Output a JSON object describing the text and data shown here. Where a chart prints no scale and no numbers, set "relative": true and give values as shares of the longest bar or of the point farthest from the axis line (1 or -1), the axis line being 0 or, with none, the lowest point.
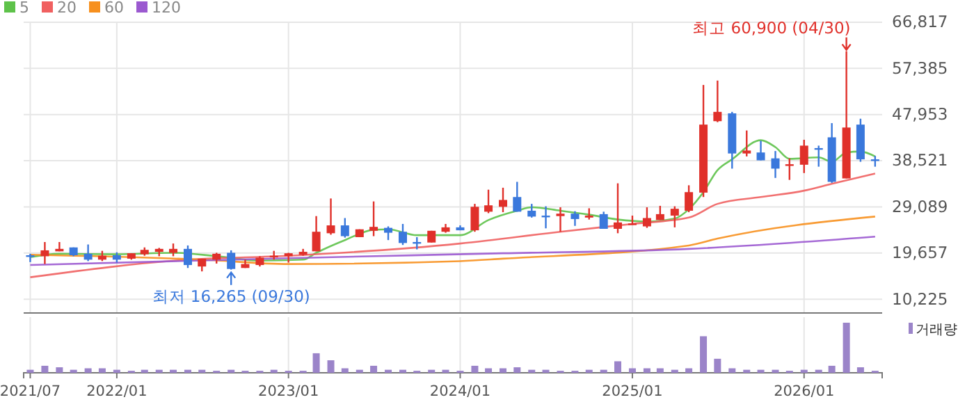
{
  "chart_data": [
    {
      "type": "candlestick",
      "legend": "top left",
      "grid": true,
      "tick_labels": "y",
      "x": [
        "2021-07",
        "2021-08",
        "2021-09",
        "2021-10",
        "2021-11",
        "2021-12",
        "2022-01",
        "2022-02",
        "2022-03",
        "2022-04",
        "2022-05",
        "2022-06",
        "2022-07",
        "2022-08",
        "2022-09",
        "2022-10",
        "2022-11",
        "2022-12",
        "2023-01",
        "2023-02",
        "2023-03",
        "2023-04",
        "2023-05",
        "2023-06",
        "2023-07",
        "2023-08",
        "2023-09",
        "2023-10",
        "2023-11",
        "2023-12",
        "2024-01",
        "2024-02",
        "2024-03",
        "2024-04",
        "2024-05",
        "2024-06",
        "2024-07",
        "2024-08",
        "2024-09",
        "2024-10",
        "2024-11",
        "2024-12",
        "2025-01",
        "2025-02",
        "2025-03",
        "2025-04",
        "2025-05",
        "2025-06",
        "2025-07",
        "2025-08",
        "2025-09",
        "2025-10",
        "2025-11",
        "2025-12",
        "2026-01",
        "2026-02",
        "2026-03",
        "2026-04",
        "2026-05",
        "2026-06"
      ],
      "ohlc": [
        [
          19200,
          19500,
          17800,
          19100
        ],
        [
          19000,
          21900,
          17400,
          20200
        ],
        [
          20000,
          21900,
          20000,
          20500
        ],
        [
          20800,
          20800,
          19000,
          19200
        ],
        [
          19500,
          21400,
          18000,
          18300
        ],
        [
          18300,
          20100,
          18000,
          19100
        ],
        [
          19200,
          19800,
          17700,
          18300
        ],
        [
          18500,
          19600,
          18300,
          19600
        ],
        [
          19400,
          20800,
          19100,
          20300
        ],
        [
          19900,
          20700,
          19000,
          20500
        ],
        [
          19700,
          21600,
          19000,
          20500
        ],
        [
          20500,
          21200,
          16600,
          17200
        ],
        [
          16900,
          18500,
          15900,
          18500
        ],
        [
          18300,
          19700,
          17500,
          19500
        ],
        [
          19700,
          20200,
          16265,
          16400
        ],
        [
          16600,
          18300,
          16600,
          17400
        ],
        [
          17200,
          19000,
          16900,
          18700
        ],
        [
          18800,
          20100,
          18300,
          19100
        ],
        [
          19000,
          19700,
          17700,
          19600
        ],
        [
          19300,
          20500,
          19100,
          19900
        ],
        [
          20000,
          27200,
          20000,
          24000
        ],
        [
          23700,
          30800,
          23400,
          25300
        ],
        [
          25300,
          26800,
          22800,
          23100
        ],
        [
          22900,
          24500,
          22900,
          24500
        ],
        [
          24200,
          30200,
          23100,
          25000
        ],
        [
          24800,
          25100,
          22300,
          23800
        ],
        [
          24000,
          25600,
          21300,
          21700
        ],
        [
          21900,
          22900,
          20400,
          21700
        ],
        [
          21800,
          24200,
          21800,
          24200
        ],
        [
          24000,
          25600,
          23800,
          24900
        ],
        [
          24900,
          25300,
          24300,
          24300
        ],
        [
          24300,
          29700,
          24000,
          29100
        ],
        [
          28100,
          32600,
          27800,
          29400
        ],
        [
          29100,
          33000,
          28000,
          30500
        ],
        [
          31100,
          34200,
          28100,
          28100
        ],
        [
          28300,
          29700,
          26900,
          27100
        ],
        [
          27300,
          29200,
          24700,
          27000
        ],
        [
          27200,
          29000,
          24000,
          27700
        ],
        [
          27700,
          28200,
          25200,
          26600
        ],
        [
          26900,
          28800,
          26500,
          27300
        ],
        [
          27600,
          28100,
          24600,
          24600
        ],
        [
          24600,
          33900,
          23700,
          25900
        ],
        [
          25400,
          27300,
          25400,
          25700
        ],
        [
          25100,
          29000,
          24800,
          26800
        ],
        [
          26400,
          29300,
          26400,
          27600
        ],
        [
          27300,
          29200,
          24900,
          28700
        ],
        [
          28300,
          33500,
          28000,
          32100
        ],
        [
          32000,
          54000,
          31100,
          45900
        ],
        [
          46600,
          54900,
          46400,
          48500
        ],
        [
          48200,
          48500,
          36900,
          40000
        ],
        [
          40000,
          44700,
          39400,
          40600
        ],
        [
          40200,
          42600,
          38600,
          38600
        ],
        [
          39000,
          40500,
          35000,
          36900
        ],
        [
          37600,
          39000,
          34600,
          37800
        ],
        [
          37700,
          42800,
          36000,
          41600
        ],
        [
          41100,
          41600,
          37300,
          40900
        ],
        [
          43300,
          46200,
          34000,
          34200
        ],
        [
          34900,
          60900,
          34900,
          45300
        ],
        [
          45900,
          47100,
          38300,
          38800
        ],
        [
          38800,
          39500,
          37300,
          38500
        ]
      ],
      "series": [
        {
          "name": "5",
          "type": "line",
          "color": "#5ec24a",
          "x": [
            "2021-07",
            "2021-09",
            "2022-01",
            "2022-05",
            "2022-08",
            "2022-11",
            "2023-02",
            "2023-03",
            "2023-05",
            "2023-07",
            "2023-08",
            "2023-10",
            "2024-01",
            "2024-03",
            "2024-05",
            "2024-06",
            "2024-08",
            "2024-10",
            "2024-12",
            "2025-02",
            "2025-04",
            "2025-05",
            "2025-06",
            "2025-07",
            "2025-08",
            "2025-10",
            "2025-11",
            "2025-12",
            "2026-02",
            "2026-03",
            "2026-04",
            "2026-05",
            "2026-06"
          ],
          "values": [
            18800,
            19500,
            19400,
            19700,
            19000,
            18100,
            18300,
            19700,
            22300,
            24400,
            24500,
            23300,
            23300,
            26400,
            28300,
            29000,
            28300,
            27500,
            26500,
            26100,
            26700,
            28600,
            32100,
            36600,
            38800,
            42700,
            41300,
            38900,
            39200,
            38300,
            40200,
            40400,
            39400
          ]
        },
        {
          "name": "20",
          "type": "line",
          "color": "#f06060",
          "x": [
            "2021-07",
            "2022-06",
            "2023-01",
            "2024-01",
            "2024-08",
            "2025-01",
            "2025-05",
            "2025-07",
            "2025-10",
            "2026-01",
            "2026-03",
            "2026-06"
          ],
          "values": [
            14700,
            18300,
            19100,
            21600,
            24000,
            25600,
            26900,
            29700,
            31100,
            32400,
            33800,
            35900
          ]
        },
        {
          "name": "60",
          "type": "line",
          "color": "#f7901e",
          "x": [
            "2021-07",
            "2022-07",
            "2023-01",
            "2024-01",
            "2024-04",
            "2025-05",
            "2025-07",
            "2026-06"
          ],
          "values": [
            19300,
            18300,
            17400,
            18000,
            18500,
            21200,
            22600,
            27100
          ]
        },
        {
          "name": "120",
          "type": "line",
          "color": "#9b59d0",
          "x": [
            "2021-07",
            "2023-01",
            "2024-04",
            "2025-05",
            "2026-06"
          ],
          "values": [
            17200,
            18600,
            19600,
            20500,
            23000
          ]
        }
      ],
      "xlim": [
        "2021-06-17",
        "2026-06-16"
      ],
      "xticks": [
        {
          "value": "2021-07",
          "label": null
        },
        {
          "value": "2022-01",
          "label": null
        },
        {
          "value": "2023-01",
          "label": null
        },
        {
          "value": "2024-01",
          "label": null
        },
        {
          "value": "2025-01",
          "label": null
        },
        {
          "value": "2026-01",
          "label": null
        }
      ],
      "ylim": [
        7400,
        66817
      ],
      "yticks": [
        {
          "value": 10225,
          "label": "10,225"
        },
        {
          "value": 19657,
          "label": "19,657"
        },
        {
          "value": 29089,
          "label": "29,089"
        },
        {
          "value": 38521,
          "label": "38,521"
        },
        {
          "value": 47953,
          "label": "47,953"
        },
        {
          "value": 57385,
          "label": "57,385"
        },
        {
          "value": 66817,
          "label": "66,817"
        }
      ],
      "annotations": [
        {
          "text": "최고 60,900 (04/30)",
          "x": "2026-04",
          "y": 60900
        },
        {
          "text": "최저 16,265 (09/30)",
          "x": "2022-09",
          "y": 16265
        }
      ]
    },
    {
      "type": "bar",
      "relative": true,
      "legend": "top right",
      "grid": "x",
      "tick_labels": "x",
      "x": [
        "2021-07",
        "2021-08",
        "2021-09",
        "2021-10",
        "2021-11",
        "2021-12",
        "2022-01",
        "2022-02",
        "2022-03",
        "2022-04",
        "2022-05",
        "2022-06",
        "2022-07",
        "2022-08",
        "2022-09",
        "2022-10",
        "2022-11",
        "2022-12",
        "2023-01",
        "2023-02",
        "2023-03",
        "2023-04",
        "2023-05",
        "2023-06",
        "2023-07",
        "2023-08",
        "2023-09",
        "2023-10",
        "2023-11",
        "2023-12",
        "2024-01",
        "2024-02",
        "2024-03",
        "2024-04",
        "2024-05",
        "2024-06",
        "2024-07",
        "2024-08",
        "2024-09",
        "2024-10",
        "2024-11",
        "2024-12",
        "2025-01",
        "2025-02",
        "2025-03",
        "2025-04",
        "2025-05",
        "2025-06",
        "2025-07",
        "2025-08",
        "2025-09",
        "2025-10",
        "2025-11",
        "2025-12",
        "2026-01",
        "2026-02",
        "2026-03",
        "2026-04",
        "2026-05",
        "2026-06"
      ],
      "series": [
        {
          "name": "거래량",
          "color": "#9b84c9",
          "values": [
            0.06,
            0.14,
            0.11,
            0.06,
            0.09,
            0.09,
            0.06,
            0.04,
            0.06,
            0.06,
            0.06,
            0.06,
            0.06,
            0.04,
            0.06,
            0.04,
            0.04,
            0.06,
            0.04,
            0.04,
            0.39,
            0.25,
            0.09,
            0.06,
            0.14,
            0.06,
            0.06,
            0.04,
            0.06,
            0.06,
            0.04,
            0.14,
            0.09,
            0.09,
            0.11,
            0.06,
            0.06,
            0.04,
            0.04,
            0.06,
            0.06,
            0.23,
            0.09,
            0.09,
            0.09,
            0.06,
            0.09,
            0.73,
            0.28,
            0.09,
            0.06,
            0.06,
            0.06,
            0.04,
            0.06,
            0.06,
            0.14,
            1,
            0.11,
            0.04
          ]
        }
      ],
      "xlim": [
        "2021-06-17",
        "2026-06-16"
      ],
      "xticks": [
        {
          "value": "2021-07",
          "label": "2021/07"
        },
        {
          "value": "2022-01",
          "label": "2022/01"
        },
        {
          "value": "2023-01",
          "label": "2023/01"
        },
        {
          "value": "2024-01",
          "label": "2024/01"
        },
        {
          "value": "2025-01",
          "label": "2025/01"
        },
        {
          "value": "2026-01",
          "label": "2026/01"
        }
      ]
    }
  ]
}
